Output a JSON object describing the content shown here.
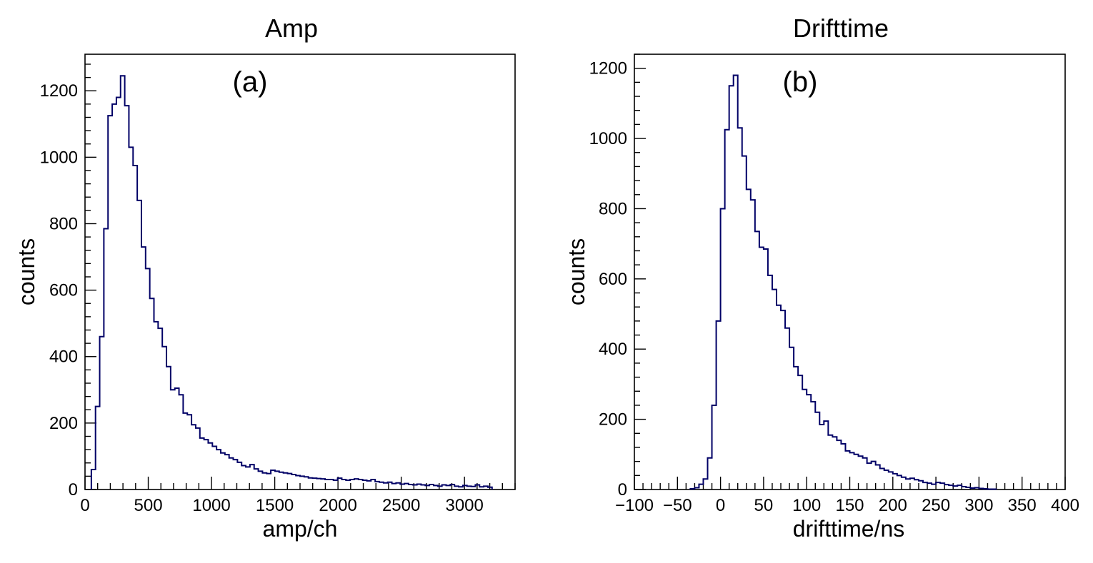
{
  "chart_data": [
    {
      "type": "bar",
      "title": "Amp",
      "panel_label": "(a)",
      "xlabel": "amp/ch",
      "ylabel": "counts",
      "xlim": [
        0,
        3400
      ],
      "ylim": [
        0,
        1310
      ],
      "xticks": [
        0,
        500,
        1000,
        1500,
        2000,
        2500,
        3000
      ],
      "xtick_labels": [
        "0",
        "500",
        "1000",
        "1500",
        "2000",
        "2500",
        "3000"
      ],
      "yticks": [
        0,
        200,
        400,
        600,
        800,
        1000,
        1200
      ],
      "ytick_labels": [
        "0",
        "200",
        "400",
        "600",
        "800",
        "1000",
        "1200"
      ],
      "bin_start": 50,
      "bin_width": 33,
      "series": [
        {
          "name": "Amp",
          "color": "#000066",
          "values": [
            60,
            250,
            460,
            785,
            1125,
            1160,
            1180,
            1245,
            1155,
            1030,
            975,
            870,
            730,
            665,
            575,
            505,
            485,
            430,
            370,
            300,
            305,
            285,
            230,
            225,
            195,
            185,
            155,
            150,
            140,
            130,
            120,
            110,
            105,
            95,
            90,
            82,
            72,
            68,
            75,
            62,
            55,
            50,
            48,
            58,
            55,
            52,
            50,
            48,
            45,
            42,
            40,
            38,
            35,
            34,
            33,
            32,
            30,
            30,
            28,
            34,
            30,
            28,
            30,
            32,
            30,
            28,
            26,
            30,
            24,
            22,
            20,
            22,
            18,
            20,
            16,
            18,
            15,
            14,
            16,
            14,
            12,
            15,
            12,
            10,
            14,
            12,
            15,
            10,
            8,
            12,
            10,
            9,
            14,
            8,
            10,
            7
          ]
        }
      ]
    },
    {
      "type": "bar",
      "title": "Drifttime",
      "panel_label": "(b)",
      "xlabel": "drifttime/ns",
      "ylabel": "counts",
      "xlim": [
        -100,
        400
      ],
      "ylim": [
        0,
        1240
      ],
      "xticks": [
        -100,
        -50,
        0,
        50,
        100,
        150,
        200,
        250,
        300,
        350,
        400
      ],
      "xtick_labels": [
        "−100",
        "−50",
        "0",
        "50",
        "100",
        "150",
        "200",
        "250",
        "300",
        "350",
        "400"
      ],
      "yticks": [
        0,
        200,
        400,
        600,
        800,
        1000,
        1200
      ],
      "ytick_labels": [
        "0",
        "200",
        "400",
        "600",
        "800",
        "1000",
        "1200"
      ],
      "bin_start": -35,
      "bin_width": 5,
      "series": [
        {
          "name": "Drifttime",
          "color": "#000066",
          "values": [
            2,
            5,
            15,
            30,
            90,
            240,
            480,
            800,
            1025,
            1150,
            1180,
            1030,
            950,
            855,
            825,
            735,
            690,
            685,
            610,
            570,
            525,
            510,
            460,
            405,
            350,
            325,
            285,
            270,
            250,
            220,
            185,
            195,
            155,
            150,
            140,
            130,
            110,
            105,
            100,
            95,
            90,
            75,
            80,
            70,
            60,
            55,
            50,
            45,
            40,
            35,
            30,
            32,
            28,
            25,
            20,
            18,
            15,
            20,
            18,
            14,
            12,
            10,
            12,
            8,
            6,
            4,
            5,
            3,
            2,
            1,
            1
          ]
        }
      ]
    }
  ]
}
